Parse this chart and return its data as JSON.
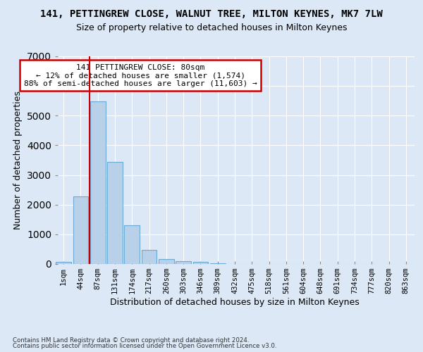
{
  "title": "141, PETTINGREW CLOSE, WALNUT TREE, MILTON KEYNES, MK7 7LW",
  "subtitle": "Size of property relative to detached houses in Milton Keynes",
  "xlabel": "Distribution of detached houses by size in Milton Keynes",
  "ylabel": "Number of detached properties",
  "footer_line1": "Contains HM Land Registry data © Crown copyright and database right 2024.",
  "footer_line2": "Contains public sector information licensed under the Open Government Licence v3.0.",
  "bar_labels": [
    "1sqm",
    "44sqm",
    "87sqm",
    "131sqm",
    "174sqm",
    "217sqm",
    "260sqm",
    "303sqm",
    "346sqm",
    "389sqm",
    "432sqm",
    "475sqm",
    "518sqm",
    "561sqm",
    "604sqm",
    "648sqm",
    "691sqm",
    "734sqm",
    "777sqm",
    "820sqm",
    "863sqm"
  ],
  "bar_values": [
    80,
    2270,
    5480,
    3430,
    1310,
    470,
    165,
    95,
    60,
    30,
    0,
    0,
    0,
    0,
    0,
    0,
    0,
    0,
    0,
    0,
    0
  ],
  "bar_color": "#b8d0e8",
  "bar_edge_color": "#6aaad4",
  "annotation_title": "141 PETTINGREW CLOSE: 80sqm",
  "annotation_line2": "← 12% of detached houses are smaller (1,574)",
  "annotation_line3": "88% of semi-detached houses are larger (11,603) →",
  "annotation_box_facecolor": "#ffffff",
  "annotation_box_edgecolor": "#cc0000",
  "vline_color": "#cc0000",
  "vline_x": 1.5,
  "ylim": [
    0,
    7000
  ],
  "yticks": [
    0,
    1000,
    2000,
    3000,
    4000,
    5000,
    6000,
    7000
  ],
  "background_color": "#dce8f5",
  "grid_color": "#ffffff",
  "title_fontsize": 10,
  "subtitle_fontsize": 9
}
